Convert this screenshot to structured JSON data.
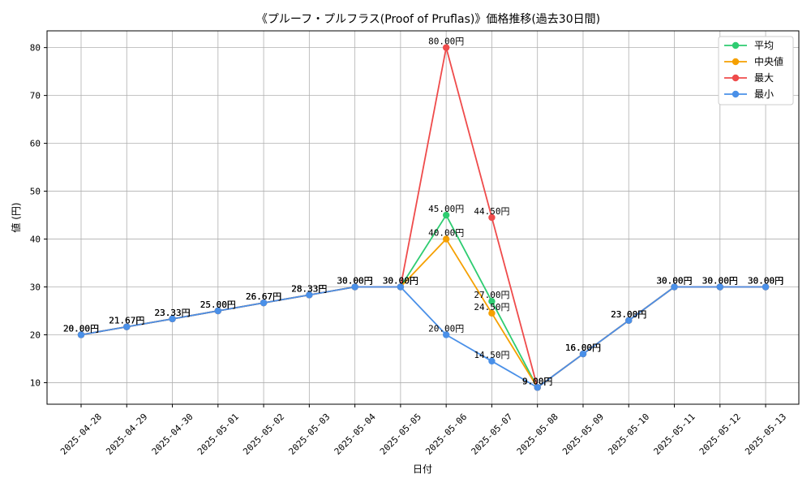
{
  "chart_data": {
    "type": "line",
    "title": "《プルーフ・プルフラス(Proof of Pruflas)》価格推移(過去30日間)",
    "xlabel": "日付",
    "ylabel": "値 (円)",
    "ylim": [
      5.5,
      83.5
    ],
    "yticks": [
      10,
      20,
      30,
      40,
      50,
      60,
      70,
      80
    ],
    "grid": true,
    "legend_position": "top-right",
    "categories": [
      "2025-04-28",
      "2025-04-29",
      "2025-04-30",
      "2025-05-01",
      "2025-05-02",
      "2025-05-03",
      "2025-05-04",
      "2025-05-05",
      "2025-05-06",
      "2025-05-07",
      "2025-05-08",
      "2025-05-09",
      "2025-05-10",
      "2025-05-11",
      "2025-05-12",
      "2025-05-13"
    ],
    "series": [
      {
        "name": "平均",
        "color": "#2ecc71",
        "values": [
          20.0,
          21.67,
          23.33,
          25.0,
          26.67,
          28.33,
          30.0,
          30.0,
          45.0,
          27.0,
          9.0,
          16.0,
          23.0,
          30.0,
          30.0,
          30.0
        ]
      },
      {
        "name": "中央値",
        "color": "#f5a000",
        "values": [
          20.0,
          21.67,
          23.33,
          25.0,
          26.67,
          28.33,
          30.0,
          30.0,
          40.0,
          24.5,
          9.0,
          16.0,
          23.0,
          30.0,
          30.0,
          30.0
        ]
      },
      {
        "name": "最大",
        "color": "#ef4b4b",
        "values": [
          20.0,
          21.67,
          23.33,
          25.0,
          26.67,
          28.33,
          30.0,
          30.0,
          80.0,
          44.5,
          9.0,
          16.0,
          23.0,
          30.0,
          30.0,
          30.0
        ]
      },
      {
        "name": "最小",
        "color": "#4a90e8",
        "values": [
          20.0,
          21.67,
          23.33,
          25.0,
          26.67,
          28.33,
          30.0,
          30.0,
          20.0,
          14.5,
          9.0,
          16.0,
          23.0,
          30.0,
          30.0,
          30.0
        ]
      }
    ],
    "value_suffix": "円"
  }
}
